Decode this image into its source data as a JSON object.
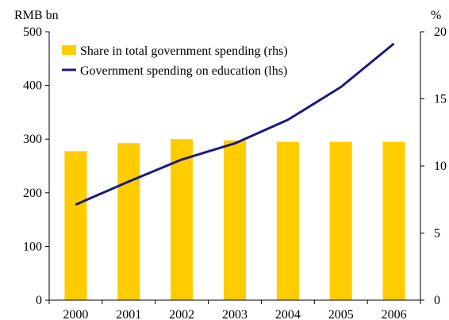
{
  "chart_data": {
    "type": "bar",
    "categories": [
      "2000",
      "2001",
      "2002",
      "2003",
      "2004",
      "2005",
      "2006"
    ],
    "left_axis": {
      "unit_label": "RMB bn",
      "ylim": [
        0,
        500
      ],
      "ticks": [
        "0",
        "100",
        "200",
        "300",
        "400",
        "500"
      ]
    },
    "right_axis": {
      "unit_label": "%",
      "ylim": [
        0,
        20
      ],
      "ticks": [
        "0",
        "5",
        "10",
        "15",
        "20"
      ]
    },
    "series": [
      {
        "name": "Share in total government spending (rhs)",
        "type": "bar",
        "axis": "right",
        "color": "#FFCC00",
        "values": [
          11.1,
          11.7,
          12.0,
          11.9,
          11.8,
          11.8,
          11.8
        ]
      },
      {
        "name": "Government spending on education (lhs)",
        "type": "line",
        "axis": "left",
        "color": "#1A1A80",
        "values": [
          178,
          221,
          262,
          292,
          336,
          397,
          478
        ]
      }
    ],
    "legend_position": "top-left",
    "grid": false
  }
}
